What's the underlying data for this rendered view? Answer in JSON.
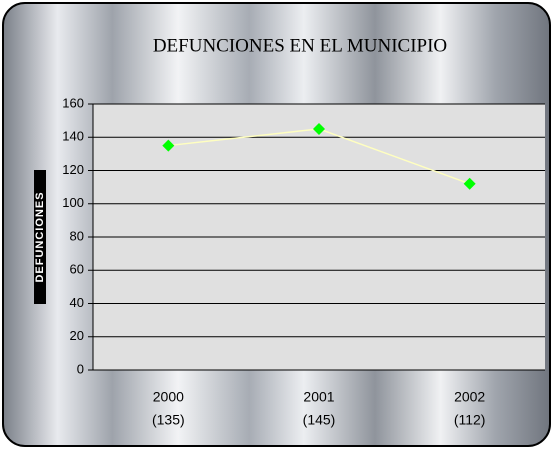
{
  "chart_data": {
    "type": "line",
    "title": "DEFUNCIONES EN EL MUNICIPIO",
    "y_label": "DEFUNCIONES",
    "categories": [
      "2000",
      "2001",
      "2002"
    ],
    "values": [
      135,
      145,
      112
    ],
    "value_labels": [
      "(135)",
      "(145)",
      "(112)"
    ],
    "color": "#ffffc0",
    "marker_color": "#00ff00",
    "ylim": [
      0,
      160
    ],
    "yticks": [
      0,
      20,
      40,
      60,
      80,
      100,
      120,
      140,
      160
    ],
    "grid": true
  }
}
